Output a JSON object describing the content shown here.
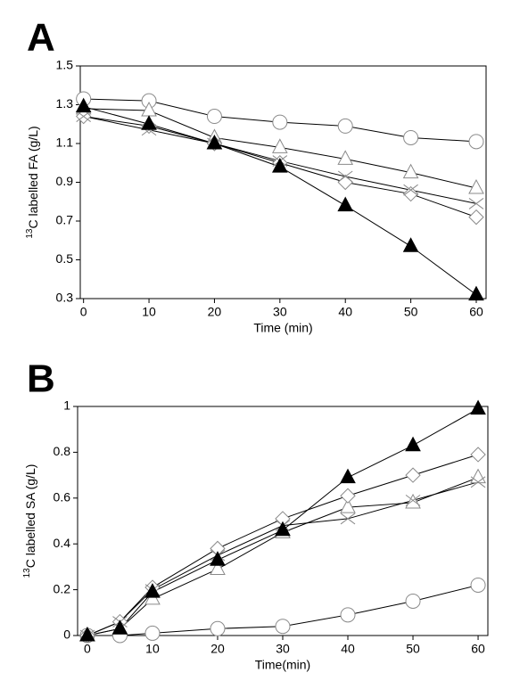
{
  "chart_data": [
    {
      "type": "line",
      "panel_label": "A",
      "ylabel": [
        "13",
        "C labelled FA (g/L)"
      ],
      "xlabel": "Time (min)",
      "x": [
        0,
        10,
        20,
        30,
        40,
        50,
        60
      ],
      "xlim": [
        -0.5,
        61.5
      ],
      "xticks": [
        0,
        10,
        20,
        30,
        40,
        50,
        60
      ],
      "ylim": [
        0.3,
        1.5
      ],
      "yticks": [
        0.3,
        0.5,
        0.7,
        0.9,
        1.1,
        1.3,
        1.5
      ],
      "line_color": "#000000",
      "series": [
        {
          "marker": "circle",
          "fill": "#ffffff",
          "stroke": "#8a8a8a",
          "values": [
            1.33,
            1.32,
            1.24,
            1.21,
            1.19,
            1.13,
            1.11
          ]
        },
        {
          "marker": "triangle",
          "fill": "#ffffff",
          "stroke": "#8a8a8a",
          "values": [
            1.28,
            1.27,
            1.13,
            1.08,
            1.02,
            0.95,
            0.87
          ]
        },
        {
          "marker": "diamond",
          "fill": "#ffffff",
          "stroke": "#8a8a8a",
          "values": [
            1.24,
            1.19,
            1.1,
            1.0,
            0.9,
            0.84,
            0.72
          ]
        },
        {
          "marker": "cross",
          "fill": "#ffffff",
          "stroke": "#8a8a8a",
          "values": [
            1.24,
            1.17,
            1.1,
            1.01,
            0.93,
            0.86,
            0.79
          ]
        },
        {
          "marker": "triangle",
          "fill": "#000000",
          "stroke": "#000000",
          "values": [
            1.29,
            1.2,
            1.1,
            0.98,
            0.78,
            0.57,
            0.32
          ]
        }
      ]
    },
    {
      "type": "line",
      "panel_label": "B",
      "ylabel": [
        "13",
        "C labelled SA (g/L)"
      ],
      "xlabel": "Time(min)",
      "x": [
        0,
        5,
        10,
        20,
        30,
        40,
        50,
        60
      ],
      "xlim": [
        -1.5,
        61.5
      ],
      "xticks": [
        0,
        10,
        20,
        30,
        40,
        50,
        60
      ],
      "ylim": [
        0,
        1
      ],
      "yticks": [
        0,
        0.2,
        0.4,
        0.6,
        0.8,
        1
      ],
      "line_color": "#000000",
      "series": [
        {
          "marker": "circle",
          "fill": "#ffffff",
          "stroke": "#8a8a8a",
          "values": [
            0,
            0,
            0.01,
            0.03,
            0.04,
            0.09,
            0.15,
            0.22
          ]
        },
        {
          "marker": "triangle",
          "fill": "#ffffff",
          "stroke": "#8a8a8a",
          "values": [
            0,
            0.03,
            0.16,
            0.29,
            0.45,
            0.56,
            0.58,
            0.69
          ]
        },
        {
          "marker": "diamond",
          "fill": "#ffffff",
          "stroke": "#8a8a8a",
          "values": [
            0,
            0.06,
            0.21,
            0.38,
            0.51,
            0.61,
            0.7,
            0.79
          ]
        },
        {
          "marker": "cross",
          "fill": "#ffffff",
          "stroke": "#8a8a8a",
          "values": [
            0,
            0.06,
            0.2,
            0.35,
            0.48,
            0.51,
            0.59,
            0.67
          ]
        },
        {
          "marker": "triangle",
          "fill": "#000000",
          "stroke": "#000000",
          "values": [
            0,
            0.03,
            0.19,
            0.33,
            0.46,
            0.69,
            0.83,
            0.99
          ]
        }
      ]
    }
  ]
}
